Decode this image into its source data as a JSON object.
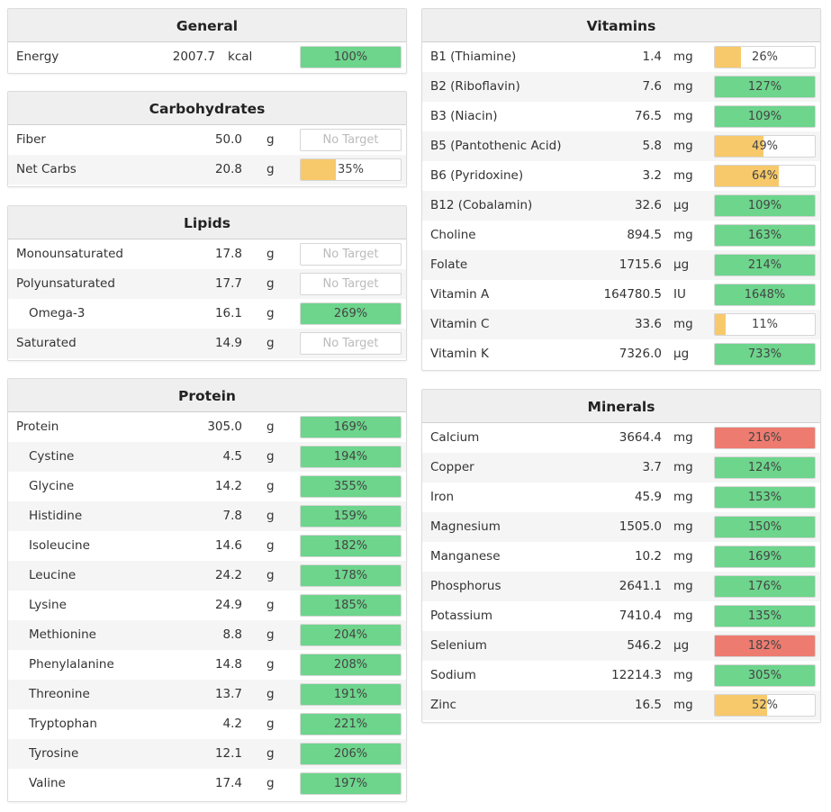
{
  "colors": {
    "green": "#6dd58c",
    "yellow": "#f7c96a",
    "red": "#ee7b70"
  },
  "general": {
    "title": "General",
    "rows": [
      {
        "name": "Energy",
        "amount": "2007.7",
        "unit": "kcal",
        "label": "100%",
        "fill": 1.0,
        "color": "green"
      }
    ]
  },
  "carbohydrates": {
    "title": "Carbohydrates",
    "rows": [
      {
        "name": "Fiber",
        "amount": "50.0",
        "unit": "g",
        "label": "No Target",
        "fill": 0,
        "color": "none"
      },
      {
        "name": "Net Carbs",
        "amount": "20.8",
        "unit": "g",
        "label": "35%",
        "fill": 0.35,
        "color": "yellow"
      }
    ]
  },
  "lipids": {
    "title": "Lipids",
    "rows": [
      {
        "name": "Monounsaturated",
        "amount": "17.8",
        "unit": "g",
        "label": "No Target",
        "fill": 0,
        "color": "none"
      },
      {
        "name": "Polyunsaturated",
        "amount": "17.7",
        "unit": "g",
        "label": "No Target",
        "fill": 0,
        "color": "none"
      },
      {
        "name": "Omega-3",
        "amount": "16.1",
        "unit": "g",
        "label": "269%",
        "fill": 1.0,
        "color": "green",
        "indent": true
      },
      {
        "name": "Saturated",
        "amount": "14.9",
        "unit": "g",
        "label": "No Target",
        "fill": 0,
        "color": "none"
      }
    ]
  },
  "protein": {
    "title": "Protein",
    "rows": [
      {
        "name": "Protein",
        "amount": "305.0",
        "unit": "g",
        "label": "169%",
        "fill": 1.0,
        "color": "green"
      },
      {
        "name": "Cystine",
        "amount": "4.5",
        "unit": "g",
        "label": "194%",
        "fill": 1.0,
        "color": "green",
        "indent": true
      },
      {
        "name": "Glycine",
        "amount": "14.2",
        "unit": "g",
        "label": "355%",
        "fill": 1.0,
        "color": "green",
        "indent": true
      },
      {
        "name": "Histidine",
        "amount": "7.8",
        "unit": "g",
        "label": "159%",
        "fill": 1.0,
        "color": "green",
        "indent": true
      },
      {
        "name": "Isoleucine",
        "amount": "14.6",
        "unit": "g",
        "label": "182%",
        "fill": 1.0,
        "color": "green",
        "indent": true
      },
      {
        "name": "Leucine",
        "amount": "24.2",
        "unit": "g",
        "label": "178%",
        "fill": 1.0,
        "color": "green",
        "indent": true
      },
      {
        "name": "Lysine",
        "amount": "24.9",
        "unit": "g",
        "label": "185%",
        "fill": 1.0,
        "color": "green",
        "indent": true
      },
      {
        "name": "Methionine",
        "amount": "8.8",
        "unit": "g",
        "label": "204%",
        "fill": 1.0,
        "color": "green",
        "indent": true
      },
      {
        "name": "Phenylalanine",
        "amount": "14.8",
        "unit": "g",
        "label": "208%",
        "fill": 1.0,
        "color": "green",
        "indent": true
      },
      {
        "name": "Threonine",
        "amount": "13.7",
        "unit": "g",
        "label": "191%",
        "fill": 1.0,
        "color": "green",
        "indent": true
      },
      {
        "name": "Tryptophan",
        "amount": "4.2",
        "unit": "g",
        "label": "221%",
        "fill": 1.0,
        "color": "green",
        "indent": true
      },
      {
        "name": "Tyrosine",
        "amount": "12.1",
        "unit": "g",
        "label": "206%",
        "fill": 1.0,
        "color": "green",
        "indent": true
      },
      {
        "name": "Valine",
        "amount": "17.4",
        "unit": "g",
        "label": "197%",
        "fill": 1.0,
        "color": "green",
        "indent": true
      }
    ]
  },
  "vitamins": {
    "title": "Vitamins",
    "rows": [
      {
        "name": "B1 (Thiamine)",
        "amount": "1.4",
        "unit": "mg",
        "label": "26%",
        "fill": 0.26,
        "color": "yellow"
      },
      {
        "name": "B2 (Riboflavin)",
        "amount": "7.6",
        "unit": "mg",
        "label": "127%",
        "fill": 1.0,
        "color": "green"
      },
      {
        "name": "B3 (Niacin)",
        "amount": "76.5",
        "unit": "mg",
        "label": "109%",
        "fill": 1.0,
        "color": "green"
      },
      {
        "name": "B5 (Pantothenic Acid)",
        "amount": "5.8",
        "unit": "mg",
        "label": "49%",
        "fill": 0.49,
        "color": "yellow"
      },
      {
        "name": "B6 (Pyridoxine)",
        "amount": "3.2",
        "unit": "mg",
        "label": "64%",
        "fill": 0.64,
        "color": "yellow"
      },
      {
        "name": "B12 (Cobalamin)",
        "amount": "32.6",
        "unit": "µg",
        "label": "109%",
        "fill": 1.0,
        "color": "green"
      },
      {
        "name": "Choline",
        "amount": "894.5",
        "unit": "mg",
        "label": "163%",
        "fill": 1.0,
        "color": "green"
      },
      {
        "name": "Folate",
        "amount": "1715.6",
        "unit": "µg",
        "label": "214%",
        "fill": 1.0,
        "color": "green"
      },
      {
        "name": "Vitamin A",
        "amount": "164780.5",
        "unit": "IU",
        "label": "1648%",
        "fill": 1.0,
        "color": "green"
      },
      {
        "name": "Vitamin C",
        "amount": "33.6",
        "unit": "mg",
        "label": "11%",
        "fill": 0.11,
        "color": "yellow"
      },
      {
        "name": "Vitamin K",
        "amount": "7326.0",
        "unit": "µg",
        "label": "733%",
        "fill": 1.0,
        "color": "green"
      }
    ]
  },
  "minerals": {
    "title": "Minerals",
    "rows": [
      {
        "name": "Calcium",
        "amount": "3664.4",
        "unit": "mg",
        "label": "216%",
        "fill": 1.0,
        "color": "red"
      },
      {
        "name": "Copper",
        "amount": "3.7",
        "unit": "mg",
        "label": "124%",
        "fill": 1.0,
        "color": "green"
      },
      {
        "name": "Iron",
        "amount": "45.9",
        "unit": "mg",
        "label": "153%",
        "fill": 1.0,
        "color": "green"
      },
      {
        "name": "Magnesium",
        "amount": "1505.0",
        "unit": "mg",
        "label": "150%",
        "fill": 1.0,
        "color": "green"
      },
      {
        "name": "Manganese",
        "amount": "10.2",
        "unit": "mg",
        "label": "169%",
        "fill": 1.0,
        "color": "green"
      },
      {
        "name": "Phosphorus",
        "amount": "2641.1",
        "unit": "mg",
        "label": "176%",
        "fill": 1.0,
        "color": "green"
      },
      {
        "name": "Potassium",
        "amount": "7410.4",
        "unit": "mg",
        "label": "135%",
        "fill": 1.0,
        "color": "green"
      },
      {
        "name": "Selenium",
        "amount": "546.2",
        "unit": "µg",
        "label": "182%",
        "fill": 1.0,
        "color": "red"
      },
      {
        "name": "Sodium",
        "amount": "12214.3",
        "unit": "mg",
        "label": "305%",
        "fill": 1.0,
        "color": "green"
      },
      {
        "name": "Zinc",
        "amount": "16.5",
        "unit": "mg",
        "label": "52%",
        "fill": 0.52,
        "color": "yellow"
      }
    ]
  }
}
